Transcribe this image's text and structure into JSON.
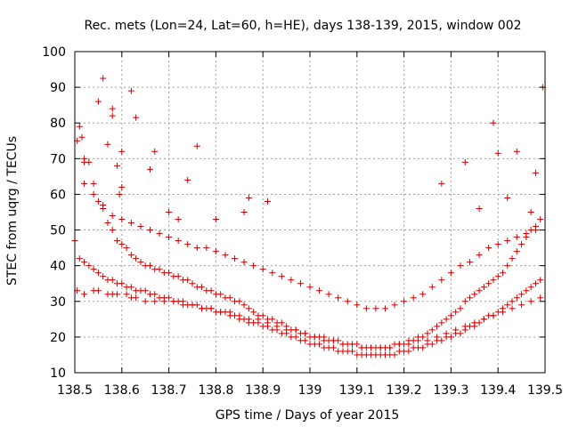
{
  "chart_data": {
    "type": "scatter",
    "title": "Rec. mets (Lon=24, Lat=60, h=HE), days 138-139, 2015, window 002",
    "xlabel": "GPS time / Days of year 2015",
    "ylabel": "STEC from uqrg / TECUs",
    "xlim": [
      138.5,
      139.5
    ],
    "ylim": [
      10,
      100
    ],
    "xticks": [
      138.5,
      138.6,
      138.7,
      138.8,
      138.9,
      139.0,
      139.1,
      139.2,
      139.3,
      139.4,
      139.5
    ],
    "xtick_labels": [
      "138.5",
      "138.6",
      "138.7",
      "138.8",
      "138.9",
      "139",
      "139.1",
      "139.2",
      "139.3",
      "139.4",
      "139.5"
    ],
    "yticks": [
      10,
      20,
      30,
      40,
      50,
      60,
      70,
      80,
      90,
      100
    ],
    "ytick_labels": [
      "10",
      "20",
      "30",
      "40",
      "50",
      "60",
      "70",
      "80",
      "90",
      "100"
    ],
    "grid": true,
    "legend": "none",
    "marker": "+",
    "color": "#cc0000",
    "series": [
      {
        "x": [
          138.505,
          138.51,
          138.515,
          138.52,
          138.53,
          138.54,
          138.55,
          138.56,
          138.57,
          138.58,
          138.59,
          138.6,
          138.61,
          138.62,
          138.63,
          138.64,
          138.65,
          138.66,
          138.67,
          138.68,
          138.69,
          138.7,
          138.71,
          138.72,
          138.73,
          138.74,
          138.75,
          138.76,
          138.77,
          138.78,
          138.79,
          138.8,
          138.81,
          138.82,
          138.83,
          138.84,
          138.85,
          138.86,
          138.87,
          138.88,
          138.89,
          138.9,
          138.91,
          138.92,
          138.93,
          138.94,
          138.95,
          138.96,
          138.97,
          138.98,
          138.99,
          139.0,
          139.01,
          139.02,
          139.03,
          139.04,
          139.05,
          139.06,
          139.07,
          139.08,
          139.09,
          139.1,
          139.11,
          139.12,
          139.13,
          139.14,
          139.15,
          139.16,
          139.17,
          139.18,
          139.19,
          139.2,
          139.21,
          139.22,
          139.23,
          139.24,
          139.25,
          139.26,
          139.27,
          139.28,
          139.29,
          139.3,
          139.31,
          139.32,
          139.33,
          139.34,
          139.35,
          139.36,
          139.37,
          139.38,
          139.39,
          139.4,
          139.41,
          139.42,
          139.43,
          139.44,
          139.45,
          139.46,
          139.47,
          139.48,
          139.49
        ],
        "y": [
          75,
          79,
          76,
          70,
          69,
          63,
          58,
          57,
          52,
          50,
          47,
          46,
          45,
          43,
          42,
          41,
          40,
          40,
          39,
          39,
          38,
          38,
          37,
          37,
          36,
          36,
          35,
          34,
          34,
          33,
          33,
          32,
          32,
          31,
          31,
          30,
          30,
          29,
          28,
          27,
          26,
          26,
          25,
          25,
          24,
          24,
          23,
          22,
          22,
          21,
          21,
          20,
          20,
          20,
          20,
          19,
          19,
          19,
          18,
          18,
          18,
          18,
          17,
          17,
          17,
          17,
          17,
          17,
          17,
          18,
          18,
          18,
          19,
          19,
          20,
          20,
          21,
          22,
          23,
          24,
          25,
          26,
          27,
          28,
          30,
          31,
          32,
          33,
          34,
          35,
          36,
          37,
          38,
          40,
          42,
          44,
          46,
          48,
          50,
          51,
          53
        ]
      },
      {
        "x": [
          138.5,
          138.51,
          138.52,
          138.53,
          138.54,
          138.55,
          138.56,
          138.57,
          138.58,
          138.59,
          138.6,
          138.61,
          138.62,
          138.63,
          138.64,
          138.65,
          138.66,
          138.67,
          138.68,
          138.69,
          138.7,
          138.71,
          138.72,
          138.73,
          138.74,
          138.75,
          138.76,
          138.77,
          138.78,
          138.79,
          138.8,
          138.81,
          138.82,
          138.83,
          138.84,
          138.85,
          138.86,
          138.87,
          138.88,
          138.89,
          138.9,
          138.91,
          138.92,
          138.93,
          138.94,
          138.95,
          138.96,
          138.97,
          138.98,
          138.99,
          139.0,
          139.01,
          139.02,
          139.03,
          139.04,
          139.05,
          139.06,
          139.07,
          139.08,
          139.09,
          139.1,
          139.11,
          139.12,
          139.13,
          139.14,
          139.15,
          139.16,
          139.17,
          139.18,
          139.19,
          139.2,
          139.21,
          139.22,
          139.23,
          139.24,
          139.25,
          139.26,
          139.27,
          139.28,
          139.29,
          139.3,
          139.31,
          139.32,
          139.33,
          139.34,
          139.35,
          139.36,
          139.37,
          139.38,
          139.39,
          139.4,
          139.41,
          139.42,
          139.43,
          139.44,
          139.45,
          139.46,
          139.47,
          139.48,
          139.49
        ],
        "y": [
          47,
          42,
          41,
          40,
          39,
          38,
          37,
          36,
          36,
          35,
          35,
          34,
          34,
          33,
          33,
          33,
          32,
          32,
          31,
          31,
          31,
          30,
          30,
          30,
          29,
          29,
          29,
          28,
          28,
          28,
          27,
          27,
          27,
          26,
          26,
          25,
          25,
          24,
          24,
          24,
          23,
          23,
          22,
          22,
          21,
          21,
          20,
          20,
          19,
          19,
          18,
          18,
          18,
          17,
          17,
          17,
          16,
          16,
          16,
          16,
          15,
          15,
          15,
          15,
          15,
          15,
          15,
          15,
          15,
          16,
          16,
          16,
          17,
          17,
          17,
          18,
          18,
          19,
          19,
          20,
          20,
          21,
          21,
          22,
          23,
          23,
          24,
          25,
          26,
          26,
          27,
          28,
          29,
          30,
          31,
          32,
          33,
          34,
          35,
          36
        ]
      },
      {
        "x": [
          138.52,
          138.54,
          138.56,
          138.58,
          138.6,
          138.62,
          138.64,
          138.66,
          138.68,
          138.7,
          138.72,
          138.74,
          138.76,
          138.78,
          138.8,
          138.82,
          138.84,
          138.86,
          138.88,
          138.9,
          138.92,
          138.94,
          138.96,
          138.98,
          139.0,
          139.02,
          139.04,
          139.06,
          139.08,
          139.1,
          139.12,
          139.14,
          139.16,
          139.18,
          139.2,
          139.22,
          139.24,
          139.26,
          139.28,
          139.3,
          139.32,
          139.34,
          139.36,
          139.38,
          139.4,
          139.42,
          139.44,
          139.46,
          139.48
        ],
        "y": [
          63,
          60,
          56,
          54,
          53,
          52,
          51,
          50,
          49,
          48,
          47,
          46,
          45,
          45,
          44,
          43,
          42,
          41,
          40,
          39,
          38,
          37,
          36,
          35,
          34,
          33,
          32,
          31,
          30,
          29,
          28,
          28,
          28,
          29,
          30,
          31,
          32,
          34,
          36,
          38,
          40,
          41,
          43,
          45,
          46,
          47,
          48,
          49,
          50
        ]
      },
      {
        "x": [
          138.505,
          138.52,
          138.54,
          138.55,
          138.57,
          138.58,
          138.59,
          138.61,
          138.62,
          138.63,
          138.65,
          138.67,
          138.69,
          138.71,
          138.73,
          138.75,
          138.77,
          138.79,
          138.81,
          138.83,
          138.85,
          138.87,
          138.89,
          138.91,
          138.93,
          138.95,
          138.97,
          138.99,
          139.01,
          139.03,
          139.05,
          139.07,
          139.09,
          139.11,
          139.13,
          139.15,
          139.17,
          139.19,
          139.21,
          139.23,
          139.25,
          139.27,
          139.29,
          139.31,
          139.33,
          139.35,
          139.37,
          139.39,
          139.41,
          139.43,
          139.45,
          139.47,
          139.49
        ],
        "y": [
          33,
          32,
          33,
          33,
          32,
          32,
          32,
          32,
          31,
          31,
          30,
          30,
          30,
          30,
          29,
          29,
          28,
          28,
          27,
          27,
          26,
          25,
          25,
          24,
          23,
          22,
          22,
          21,
          20,
          19,
          19,
          18,
          18,
          17,
          17,
          17,
          17,
          18,
          18,
          19,
          19,
          20,
          21,
          22,
          23,
          24,
          25,
          26,
          27,
          28,
          29,
          30,
          31
        ]
      },
      {
        "x": [
          138.56,
          138.57,
          138.58,
          138.58,
          138.59,
          138.595,
          138.6,
          138.62,
          138.63,
          138.67,
          138.72,
          138.76,
          138.87,
          138.91,
          139.28,
          139.33,
          139.39,
          139.4,
          139.44,
          139.48,
          139.495,
          138.52,
          138.55,
          138.6,
          138.66,
          138.7,
          138.74,
          138.8,
          138.86,
          139.36,
          139.42,
          139.47
        ],
        "y": [
          92.5,
          74,
          84,
          82,
          68,
          60,
          72,
          89,
          81.5,
          72,
          53,
          73.5,
          59,
          58,
          63,
          69,
          80,
          71.5,
          72,
          66,
          90,
          69,
          86,
          62,
          67,
          55,
          64,
          53,
          55,
          56,
          59,
          55
        ]
      }
    ]
  }
}
